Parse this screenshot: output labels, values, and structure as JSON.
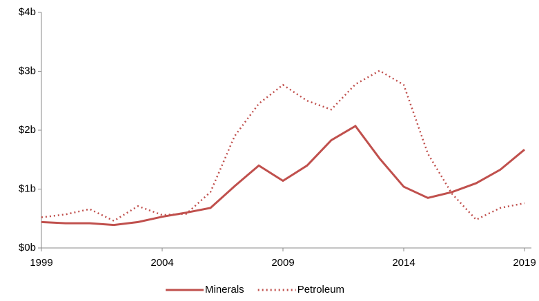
{
  "chart_data": {
    "type": "line",
    "x": [
      1999,
      2000,
      2001,
      2002,
      2003,
      2004,
      2005,
      2006,
      2007,
      2008,
      2009,
      2010,
      2011,
      2012,
      2013,
      2014,
      2015,
      2016,
      2017,
      2018,
      2019
    ],
    "series": [
      {
        "name": "Minerals",
        "color": "#c0504d",
        "style": "solid",
        "values": [
          0.44,
          0.42,
          0.42,
          0.39,
          0.44,
          0.53,
          0.6,
          0.68,
          1.05,
          1.4,
          1.14,
          1.4,
          1.83,
          2.07,
          1.52,
          1.04,
          0.85,
          0.95,
          1.1,
          1.33,
          1.67
        ]
      },
      {
        "name": "Petroleum",
        "color": "#c0504d",
        "style": "dotted",
        "values": [
          0.52,
          0.57,
          0.66,
          0.46,
          0.71,
          0.56,
          0.58,
          0.95,
          1.9,
          2.45,
          2.77,
          2.5,
          2.35,
          2.78,
          3.01,
          2.77,
          1.6,
          0.92,
          0.48,
          0.68,
          0.76
        ]
      }
    ],
    "xlim": [
      1999,
      2019
    ],
    "xticks": [
      1999,
      2004,
      2009,
      2014,
      2019
    ],
    "ylim": [
      0,
      4
    ],
    "yticks": [
      {
        "value": 0,
        "label": "$0b"
      },
      {
        "value": 1,
        "label": "$1b"
      },
      {
        "value": 2,
        "label": "$2b"
      },
      {
        "value": 3,
        "label": "$3b"
      },
      {
        "value": 4,
        "label": "$4b"
      }
    ],
    "legend": "bottom"
  }
}
